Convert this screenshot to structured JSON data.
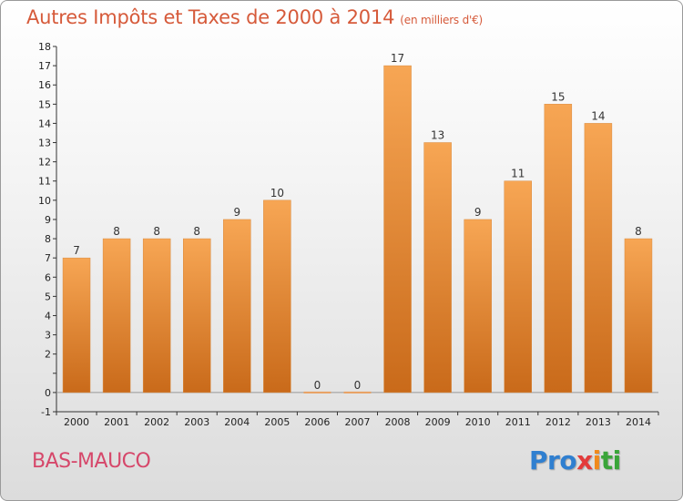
{
  "header": {
    "title": "Autres Impôts et Taxes de 2000 à 2014",
    "subtitle": "(en milliers d'€)"
  },
  "footer": {
    "place": "BAS-MAUCO",
    "brand": [
      "Pro",
      "x",
      "i",
      "ti"
    ]
  },
  "colors": {
    "bar_top": "#f7a654",
    "bar_bottom": "#c96a1a",
    "title": "#d65a3a",
    "place": "#d6476a"
  },
  "chart_data": {
    "type": "bar",
    "categories": [
      "2000",
      "2001",
      "2002",
      "2003",
      "2004",
      "2005",
      "2006",
      "2007",
      "2008",
      "2009",
      "2010",
      "2011",
      "2012",
      "2013",
      "2014"
    ],
    "values": [
      7,
      8,
      8,
      8,
      9,
      10,
      0,
      0,
      17,
      13,
      9,
      11,
      15,
      14,
      8
    ],
    "value_labels": [
      "7",
      "8",
      "8",
      "8",
      "9",
      "10",
      "0",
      "0",
      "17",
      "13",
      "9",
      "11",
      "15",
      "14",
      "8"
    ],
    "title": "Autres Impôts et Taxes de 2000 à 2014",
    "ylim": [
      -1,
      18
    ],
    "yticks": [
      -1,
      0,
      1,
      2,
      3,
      4,
      5,
      6,
      7,
      8,
      9,
      10,
      11,
      12,
      13,
      14,
      15,
      16,
      17,
      18
    ],
    "ytick_labels": [
      "-1",
      "0",
      "",
      "2",
      "3",
      "4",
      "5",
      "6",
      "7",
      "8",
      "9",
      "10",
      "11",
      "12",
      "13",
      "14",
      "15",
      "16",
      "17",
      "18"
    ],
    "grid": false
  }
}
